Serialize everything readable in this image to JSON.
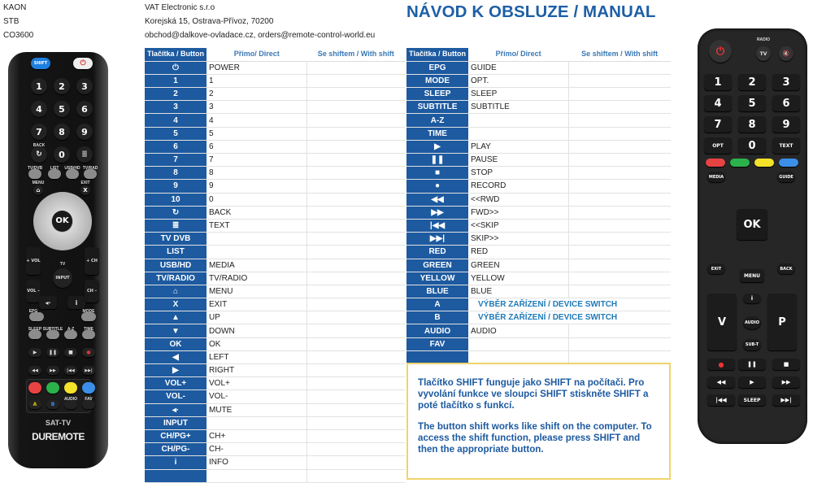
{
  "model": {
    "brand": "KAON",
    "type": "STB",
    "code": "CO3600"
  },
  "company": {
    "name": "VAT Electronic s.r.o",
    "address": "Korejská 15, Ostrava-Přívoz, 70200",
    "emails": "obchod@dalkove-ovladace.cz, orders@remote-control-world.eu"
  },
  "title": "NÁVOD K OBSLUZE / MANUAL",
  "colors": {
    "accent": "#1d5aa0",
    "note_border": "#f0d36b",
    "device_switch": "#1f7ab8"
  },
  "table_headers": {
    "button": "Tlačítka / Button",
    "direct": "Přímo/ Direct",
    "shift": "Se shiftem / With shift"
  },
  "left_table": [
    {
      "button": "⏻",
      "icon": "power-icon",
      "direct": "POWER"
    },
    {
      "button": "1",
      "direct": "1"
    },
    {
      "button": "2",
      "direct": "2"
    },
    {
      "button": "3",
      "direct": "3"
    },
    {
      "button": "4",
      "direct": "4"
    },
    {
      "button": "5",
      "direct": "5"
    },
    {
      "button": "6",
      "direct": "6"
    },
    {
      "button": "7",
      "direct": "7"
    },
    {
      "button": "8",
      "direct": "8"
    },
    {
      "button": "9",
      "direct": "9"
    },
    {
      "button": "10",
      "direct": "0"
    },
    {
      "button": "↻",
      "icon": "back-icon",
      "direct": "BACK"
    },
    {
      "button": "≣",
      "icon": "text-icon",
      "direct": "TEXT"
    },
    {
      "button": "TV DVB",
      "direct": ""
    },
    {
      "button": "LIST",
      "direct": ""
    },
    {
      "button": "USB/HD",
      "direct": "MEDIA"
    },
    {
      "button": "TV/RADIO",
      "direct": "TV/RADIO"
    },
    {
      "button": "⌂",
      "icon": "home-icon",
      "direct": "MENU"
    },
    {
      "button": "X",
      "direct": "EXIT"
    },
    {
      "button": "▲",
      "icon": "up-arrow-icon",
      "direct": "UP"
    },
    {
      "button": "▼",
      "icon": "down-arrow-icon",
      "direct": "DOWN"
    },
    {
      "button": "OK",
      "direct": "OK"
    },
    {
      "button": "◀",
      "icon": "left-arrow-icon",
      "direct": "LEFT"
    },
    {
      "button": "▶",
      "icon": "right-arrow-icon",
      "direct": "RIGHT"
    },
    {
      "button": "VOL+",
      "direct": "VOL+"
    },
    {
      "button": "VOL-",
      "direct": "VOL-"
    },
    {
      "button": "◂·",
      "icon": "mute-icon",
      "direct": "MUTE"
    },
    {
      "button": "INPUT",
      "direct": ""
    },
    {
      "button": "CH/PG+",
      "direct": "CH+"
    },
    {
      "button": "CH/PG-",
      "direct": "CH-"
    },
    {
      "button": "i",
      "icon": "info-icon",
      "direct": "INFO"
    },
    {
      "button": "",
      "direct": ""
    }
  ],
  "right_table": [
    {
      "button": "EPG",
      "direct": "GUIDE"
    },
    {
      "button": "MODE",
      "direct": "OPT."
    },
    {
      "button": "SLEEP",
      "direct": "SLEEP"
    },
    {
      "button": "SUBTITLE",
      "direct": "SUBTITLE"
    },
    {
      "button": "A-Z",
      "direct": ""
    },
    {
      "button": "TIME",
      "direct": ""
    },
    {
      "button": "▶",
      "icon": "play-icon",
      "direct": "PLAY"
    },
    {
      "button": "❚❚",
      "icon": "pause-icon",
      "direct": "PAUSE"
    },
    {
      "button": "■",
      "icon": "stop-icon",
      "direct": "STOP"
    },
    {
      "button": "●",
      "icon": "record-icon",
      "direct": "RECORD"
    },
    {
      "button": "◀◀",
      "icon": "rewind-icon",
      "direct": "<<RWD"
    },
    {
      "button": "▶▶",
      "icon": "fast-forward-icon",
      "direct": "FWD>>"
    },
    {
      "button": "|◀◀",
      "icon": "skip-back-icon",
      "direct": "<<SKIP"
    },
    {
      "button": "▶▶|",
      "icon": "skip-forward-icon",
      "direct": "SKIP>>"
    },
    {
      "button": "RED",
      "direct": "RED"
    },
    {
      "button": "GREEN",
      "direct": "GREEN"
    },
    {
      "button": "YELLOW",
      "direct": "YELLOW"
    },
    {
      "button": "BLUE",
      "direct": "BLUE"
    },
    {
      "button": "A",
      "span": "VÝBĚR ZAŘÍZENÍ / DEVICE SWITCH"
    },
    {
      "button": "B",
      "span": "VÝBĚR ZAŘÍZENÍ / DEVICE SWITCH"
    },
    {
      "button": "AUDIO",
      "direct": "AUDIO"
    },
    {
      "button": "FAV",
      "direct": ""
    },
    {
      "button": "",
      "direct": ""
    }
  ],
  "note": {
    "cz": "Tlačítko SHIFT funguje jako SHIFT na počítači. Pro vyvolání funkce ve sloupci SHIFT stiskněte SHIFT a poté tlačítko s funkcí.",
    "en": "The button shift works like shift on the computer. To access the shift function, please press SHIFT and then the appropriate button."
  },
  "left_remote": {
    "buttons": [
      "SHIFT",
      "⏻",
      "1",
      "2",
      "3",
      "4",
      "5",
      "6",
      "7",
      "8",
      "9",
      "↻",
      "0",
      "≣",
      "",
      "",
      "",
      "",
      "⌂",
      "X",
      "OK",
      "+ VOL",
      "+ CH",
      "VOL –",
      "CH –",
      "INPUT",
      "◂·",
      "i",
      "",
      "",
      "",
      "",
      "",
      "",
      "▶",
      "❚❚",
      "■",
      "●",
      "◀◀",
      "▶▶",
      "|◀◀",
      "▶▶|",
      "",
      "",
      "",
      "",
      "A",
      "B",
      "",
      ""
    ],
    "labels": [
      "BACK",
      "TV/DVB",
      "LIST",
      "USB/HD",
      "TV/RAD",
      "MENU",
      "EXIT",
      "TV",
      "EPG",
      "MODE",
      "SLEEP",
      "SUBTITLE",
      "A-Z",
      "TIME",
      "AUDIO",
      "FAV"
    ],
    "model_label": "SAT-TV",
    "brand": "DUREMOTE"
  },
  "right_remote": {
    "buttons": [
      "⏻",
      "TV",
      "🔇",
      "1",
      "2",
      "3",
      "4",
      "5",
      "6",
      "7",
      "8",
      "9",
      "OPT",
      "0",
      "TEXT",
      "",
      "",
      "",
      "",
      "MEDIA",
      "GUIDE",
      "OK",
      "EXIT",
      "BACK",
      "MENU",
      "V",
      "P",
      "i",
      "AUDIO",
      "SUB-T",
      "●",
      "❚❚",
      "■",
      "◀◀",
      "▶",
      "▶▶",
      "|◀◀",
      "SLEEP",
      "▶▶|"
    ],
    "labels": [
      "RADIO"
    ]
  }
}
